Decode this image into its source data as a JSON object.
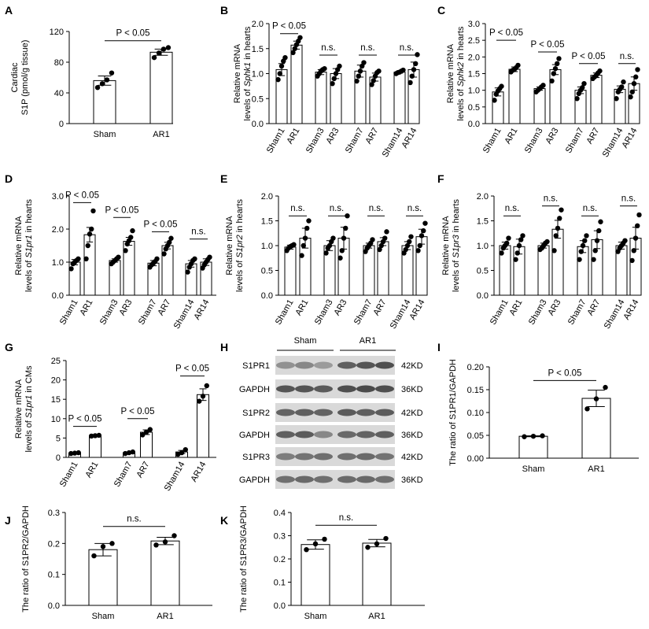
{
  "figure": {
    "panels": [
      "A",
      "B",
      "C",
      "D",
      "E",
      "F",
      "G",
      "H",
      "I",
      "J",
      "K"
    ]
  },
  "chart_data": [
    {
      "panel": "A",
      "type": "bar",
      "ylabel_lines": [
        "Cardiac",
        "S1P (pmol/g tissue)"
      ],
      "ylim": [
        0,
        120
      ],
      "yticks": [
        "0",
        "40",
        "80",
        "120"
      ],
      "categories": [
        "Sham",
        "AR1"
      ],
      "values": [
        56,
        93
      ],
      "errors": [
        6,
        4
      ],
      "points": [
        [
          47,
          52,
          57,
          66
        ],
        [
          86,
          92,
          97,
          99
        ]
      ],
      "annotations": [
        {
          "text": "P < 0.05",
          "from": 0,
          "to": 1,
          "y": 108
        }
      ],
      "bar_color": "#ffffff"
    },
    {
      "panel": "B",
      "type": "bar",
      "ylabel_lines": [
        "Relative mRNA",
        "levels of |Sphk1| in hearts"
      ],
      "ylim": [
        0,
        2.0
      ],
      "yticks": [
        "0.0",
        "0.5",
        "1.0",
        "1.5",
        "2.0"
      ],
      "categories": [
        "Sham1",
        "AR1",
        "Sham3",
        "AR3",
        "Sham7",
        "AR7",
        "Sham14",
        "AR14"
      ],
      "values": [
        1.08,
        1.57,
        1.03,
        1.0,
        1.05,
        0.93,
        1.03,
        1.08
      ],
      "errors": [
        0.12,
        0.08,
        0.05,
        0.1,
        0.12,
        0.08,
        0.02,
        0.15
      ],
      "points": [
        [
          0.88,
          1.0,
          1.15,
          1.25,
          1.32
        ],
        [
          1.42,
          1.5,
          1.58,
          1.65,
          1.72
        ],
        [
          0.95,
          1.0,
          1.05,
          1.08,
          1.1
        ],
        [
          0.8,
          0.9,
          1.0,
          1.08,
          1.15
        ],
        [
          0.85,
          0.95,
          1.05,
          1.15,
          1.22
        ],
        [
          0.78,
          0.86,
          0.95,
          1.02,
          1.05
        ],
        [
          1.0,
          1.02,
          1.03,
          1.05,
          1.07
        ],
        [
          0.82,
          0.95,
          1.08,
          1.2,
          1.38
        ]
      ],
      "annotations": [
        {
          "text": "P < 0.05",
          "from": 0,
          "to": 1,
          "y": 1.8
        },
        {
          "text": "n.s.",
          "from": 2,
          "to": 3,
          "y": 1.37
        },
        {
          "text": "n.s.",
          "from": 4,
          "to": 5,
          "y": 1.37
        },
        {
          "text": "n.s.",
          "from": 6,
          "to": 7,
          "y": 1.37
        }
      ]
    },
    {
      "panel": "C",
      "type": "bar",
      "ylabel_lines": [
        "Relative mRNA",
        "levels of |Sphk2| in hearts"
      ],
      "ylim": [
        0,
        3.0
      ],
      "yticks": [
        "0.0",
        "0.5",
        "1.0",
        "1.5",
        "2.0",
        "2.5",
        "3.0"
      ],
      "categories": [
        "Sham1",
        "AR1",
        "Sham3",
        "AR3",
        "Sham7",
        "AR7",
        "Sham14",
        "AR14"
      ],
      "values": [
        0.95,
        1.63,
        1.05,
        1.62,
        1.0,
        1.45,
        1.03,
        1.2
      ],
      "errors": [
        0.12,
        0.07,
        0.05,
        0.15,
        0.1,
        0.07,
        0.1,
        0.2
      ],
      "points": [
        [
          0.7,
          0.88,
          0.98,
          1.05,
          1.12
        ],
        [
          1.55,
          1.6,
          1.63,
          1.68,
          1.75
        ],
        [
          0.95,
          1.0,
          1.05,
          1.1,
          1.15
        ],
        [
          1.28,
          1.5,
          1.65,
          1.8,
          1.95
        ],
        [
          0.75,
          0.9,
          1.0,
          1.08,
          1.2
        ],
        [
          1.35,
          1.4,
          1.45,
          1.52,
          1.58
        ],
        [
          0.75,
          0.95,
          1.03,
          1.1,
          1.25
        ],
        [
          0.8,
          0.95,
          1.2,
          1.4,
          1.62
        ]
      ],
      "annotations": [
        {
          "text": "P < 0.05",
          "from": 0,
          "to": 1,
          "y": 2.5
        },
        {
          "text": "P < 0.05",
          "from": 2,
          "to": 3,
          "y": 2.15
        },
        {
          "text": "P < 0.05",
          "from": 4,
          "to": 5,
          "y": 1.8
        },
        {
          "text": "n.s.",
          "from": 6,
          "to": 7,
          "y": 1.8
        }
      ]
    },
    {
      "panel": "D",
      "type": "bar",
      "ylabel_lines": [
        "Relative mRNA",
        "levels of |S1pr1| in hearts"
      ],
      "ylim": [
        0,
        3.0
      ],
      "yticks": [
        "0.0",
        "1.0",
        "2.0",
        "3.0"
      ],
      "categories": [
        "Sham1",
        "AR1",
        "Sham3",
        "AR3",
        "Sham7",
        "AR7",
        "Sham14",
        "AR14"
      ],
      "values": [
        1.0,
        1.83,
        1.05,
        1.63,
        0.97,
        1.5,
        0.95,
        1.0
      ],
      "errors": [
        0.08,
        0.22,
        0.05,
        0.12,
        0.08,
        0.1,
        0.1,
        0.1
      ],
      "points": [
        [
          0.8,
          0.95,
          1.0,
          1.05,
          1.1
        ],
        [
          1.1,
          1.5,
          1.85,
          2.0,
          2.55
        ],
        [
          0.95,
          1.0,
          1.05,
          1.1,
          1.15
        ],
        [
          1.35,
          1.55,
          1.65,
          1.75,
          1.95
        ],
        [
          0.85,
          0.92,
          0.97,
          1.02,
          1.1
        ],
        [
          1.25,
          1.4,
          1.5,
          1.6,
          1.72
        ],
        [
          0.7,
          0.85,
          0.95,
          1.05,
          1.1
        ],
        [
          0.82,
          0.92,
          1.0,
          1.08,
          1.15
        ]
      ],
      "annotations": [
        {
          "text": "P < 0.05",
          "from": 0,
          "to": 1,
          "y": 2.8
        },
        {
          "text": "P < 0.05",
          "from": 2,
          "to": 3,
          "y": 2.35
        },
        {
          "text": "P < 0.05",
          "from": 4,
          "to": 5,
          "y": 1.92
        },
        {
          "text": "n.s.",
          "from": 6,
          "to": 7,
          "y": 1.7
        }
      ]
    },
    {
      "panel": "E",
      "type": "bar",
      "ylabel_lines": [
        "Relative mRNA",
        "levels of |S1pr2| in hearts"
      ],
      "ylim": [
        0,
        2.0
      ],
      "yticks": [
        "0.0",
        "0.5",
        "1.0",
        "1.5",
        "2.0"
      ],
      "categories": [
        "Sham1",
        "AR1",
        "Sham3",
        "AR3",
        "Sham7",
        "AR7",
        "Sham14",
        "AR14"
      ],
      "values": [
        0.97,
        1.15,
        1.0,
        1.15,
        1.0,
        1.08,
        1.0,
        1.18
      ],
      "errors": [
        0.04,
        0.2,
        0.1,
        0.22,
        0.05,
        0.08,
        0.08,
        0.15
      ],
      "points": [
        [
          0.9,
          0.95,
          0.98,
          1.0,
          1.02
        ],
        [
          0.8,
          1.0,
          1.15,
          1.35,
          1.5
        ],
        [
          0.85,
          0.95,
          1.0,
          1.08,
          1.15
        ],
        [
          0.75,
          0.9,
          1.15,
          1.35,
          1.6
        ],
        [
          0.88,
          0.95,
          1.0,
          1.05,
          1.12
        ],
        [
          0.92,
          1.0,
          1.08,
          1.15,
          1.28
        ],
        [
          0.85,
          0.92,
          1.0,
          1.08,
          1.18
        ],
        [
          0.9,
          1.0,
          1.2,
          1.3,
          1.45
        ]
      ],
      "annotations": [
        {
          "text": "n.s.",
          "from": 0,
          "to": 1,
          "y": 1.6
        },
        {
          "text": "n.s.",
          "from": 2,
          "to": 3,
          "y": 1.6
        },
        {
          "text": "n.s.",
          "from": 4,
          "to": 5,
          "y": 1.6
        },
        {
          "text": "n.s.",
          "from": 6,
          "to": 7,
          "y": 1.6
        }
      ]
    },
    {
      "panel": "F",
      "type": "bar",
      "ylabel_lines": [
        "Relative mRNA",
        "levels of |S1pr3| in hearts"
      ],
      "ylim": [
        0,
        2.0
      ],
      "yticks": [
        "0.0",
        "0.5",
        "1.0",
        "1.5",
        "2.0"
      ],
      "categories": [
        "Sham1",
        "AR1",
        "Sham3",
        "AR3",
        "Sham7",
        "AR7",
        "Sham14",
        "AR14"
      ],
      "values": [
        1.0,
        0.98,
        1.0,
        1.33,
        0.98,
        1.12,
        1.0,
        1.15
      ],
      "errors": [
        0.07,
        0.15,
        0.05,
        0.18,
        0.12,
        0.18,
        0.07,
        0.22
      ],
      "points": [
        [
          0.85,
          0.95,
          1.0,
          1.05,
          1.15
        ],
        [
          0.72,
          0.85,
          1.0,
          1.12,
          1.2
        ],
        [
          0.92,
          0.95,
          1.0,
          1.05,
          1.08
        ],
        [
          0.9,
          1.2,
          1.35,
          1.55,
          1.72
        ],
        [
          0.72,
          0.88,
          1.0,
          1.1,
          1.2
        ],
        [
          0.72,
          0.9,
          1.1,
          1.3,
          1.48
        ],
        [
          0.88,
          0.95,
          1.0,
          1.05,
          1.1
        ],
        [
          0.7,
          0.9,
          1.15,
          1.4,
          1.62
        ]
      ],
      "annotations": [
        {
          "text": "n.s.",
          "from": 0,
          "to": 1,
          "y": 1.6
        },
        {
          "text": "n.s.",
          "from": 2,
          "to": 3,
          "y": 1.8
        },
        {
          "text": "n.s.",
          "from": 4,
          "to": 5,
          "y": 1.6
        },
        {
          "text": "n.s.",
          "from": 6,
          "to": 7,
          "y": 1.8
        }
      ]
    },
    {
      "panel": "G",
      "type": "bar",
      "ylabel_lines": [
        "Relative mRNA",
        "levels of |S1pr1| in CMs"
      ],
      "ylim": [
        0,
        25
      ],
      "yticks": [
        "0",
        "5",
        "10",
        "15",
        "20",
        "25"
      ],
      "categories": [
        "Sham1",
        "AR1",
        "Sham7",
        "AR7",
        "Sham14",
        "AR14"
      ],
      "values": [
        1.1,
        5.6,
        1.2,
        6.5,
        1.4,
        16.2
      ],
      "errors": [
        0.2,
        0.2,
        0.2,
        0.6,
        0.4,
        1.5
      ],
      "points": [
        [
          1.0,
          1.1,
          1.2
        ],
        [
          5.5,
          5.6,
          5.7
        ],
        [
          1.0,
          1.2,
          1.4
        ],
        [
          5.8,
          6.5,
          7.2
        ],
        [
          0.8,
          1.2,
          2.0
        ],
        [
          14.5,
          15.8,
          18.5
        ]
      ],
      "annotations": [
        {
          "text": "P < 0.05",
          "from": 0,
          "to": 1,
          "y": 8
        },
        {
          "text": "P < 0.05",
          "from": 2,
          "to": 3,
          "y": 10
        },
        {
          "text": "P < 0.05",
          "from": 4,
          "to": 5,
          "y": 21
        }
      ]
    },
    {
      "panel": "I",
      "type": "bar",
      "ylabel_lines": [
        "The ratio of S1PR1/GAPDH"
      ],
      "ylim": [
        0,
        0.2
      ],
      "yticks": [
        "0.00",
        "0.05",
        "0.10",
        "0.15",
        "0.20"
      ],
      "categories": [
        "Sham",
        "AR1"
      ],
      "values": [
        0.048,
        0.131
      ],
      "errors": [
        0.001,
        0.018
      ],
      "points": [
        [
          0.047,
          0.048,
          0.049
        ],
        [
          0.108,
          0.13,
          0.155
        ]
      ],
      "annotations": [
        {
          "text": "P < 0.05",
          "from": 0,
          "to": 1,
          "y": 0.17
        }
      ]
    },
    {
      "panel": "J",
      "type": "bar",
      "ylabel_lines": [
        "The ratio of S1PR2/GAPDH"
      ],
      "ylim": [
        0,
        0.3
      ],
      "yticks": [
        "0.0",
        "0.1",
        "0.2",
        "0.3"
      ],
      "categories": [
        "Sham",
        "AR1"
      ],
      "values": [
        0.18,
        0.208
      ],
      "errors": [
        0.02,
        0.012
      ],
      "points": [
        [
          0.16,
          0.19,
          0.2
        ],
        [
          0.195,
          0.205,
          0.225
        ]
      ],
      "annotations": [
        {
          "text": "n.s.",
          "from": 0,
          "to": 1,
          "y": 0.255
        }
      ]
    },
    {
      "panel": "K",
      "type": "bar",
      "ylabel_lines": [
        "The ratio of S1PR3/GAPDH"
      ],
      "ylim": [
        0,
        0.4
      ],
      "yticks": [
        "0.0",
        "0.1",
        "0.2",
        "0.3",
        "0.4"
      ],
      "categories": [
        "Sham",
        "AR1"
      ],
      "values": [
        0.262,
        0.268
      ],
      "errors": [
        0.02,
        0.016
      ],
      "points": [
        [
          0.24,
          0.265,
          0.285
        ],
        [
          0.25,
          0.265,
          0.288
        ]
      ],
      "annotations": [
        {
          "text": "n.s.",
          "from": 0,
          "to": 1,
          "y": 0.345
        }
      ]
    }
  ],
  "western_blot": {
    "panel": "H",
    "groups": [
      "Sham",
      "AR1"
    ],
    "rows": [
      {
        "label": "S1PR1",
        "kd": "42KD",
        "intensity": [
          0.55,
          0.6,
          0.5,
          0.8,
          0.85,
          0.88
        ]
      },
      {
        "label": "GAPDH",
        "kd": "36KD",
        "intensity": [
          0.85,
          0.85,
          0.82,
          0.88,
          0.9,
          0.88
        ]
      },
      {
        "label": "S1PR2",
        "kd": "42KD",
        "intensity": [
          0.78,
          0.8,
          0.78,
          0.82,
          0.8,
          0.82
        ]
      },
      {
        "label": "GAPDH",
        "kd": "36KD",
        "intensity": [
          0.8,
          0.82,
          0.6,
          0.75,
          0.78,
          0.8
        ]
      },
      {
        "label": "S1PR3",
        "kd": "42KD",
        "intensity": [
          0.65,
          0.7,
          0.72,
          0.72,
          0.75,
          0.7
        ]
      },
      {
        "label": "GAPDH",
        "kd": "36KD",
        "intensity": [
          0.72,
          0.75,
          0.72,
          0.74,
          0.75,
          0.72
        ]
      }
    ]
  }
}
